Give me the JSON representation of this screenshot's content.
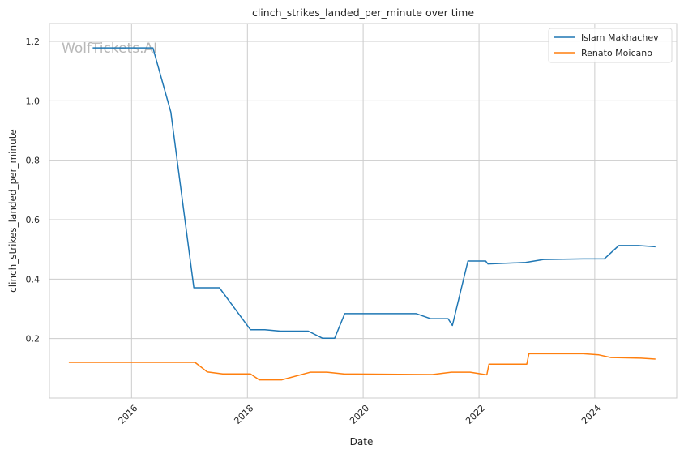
{
  "chart_data": {
    "type": "line",
    "title": "clinch_strikes_landed_per_minute over time",
    "xlabel": "Date",
    "ylabel": "clinch_strikes_landed_per_minute",
    "xlim": [
      "2014-08-01",
      "2025-06-01"
    ],
    "ylim": [
      0.0,
      1.26
    ],
    "x_ticks": [
      "2016",
      "2018",
      "2020",
      "2022",
      "2024"
    ],
    "x_tick_values": [
      "2016-01-01",
      "2018-01-01",
      "2020-01-01",
      "2022-01-01",
      "2024-01-01"
    ],
    "y_ticks": [
      0.2,
      0.4,
      0.6,
      0.8,
      1.0,
      1.2
    ],
    "y_tick_labels": [
      "0.2",
      "0.4",
      "0.6",
      "0.8",
      "1.0",
      "1.2"
    ],
    "grid": true,
    "legend_position": "top-right",
    "watermark": "WolfTickets.AI",
    "series": [
      {
        "name": "Islam Makhachev",
        "color": "#1f77b4",
        "points": [
          [
            "2015-05-01",
            1.178
          ],
          [
            "2016-05-15",
            1.178
          ],
          [
            "2016-09-05",
            0.962
          ],
          [
            "2017-01-28",
            0.371
          ],
          [
            "2017-07-08",
            0.371
          ],
          [
            "2018-01-20",
            0.23
          ],
          [
            "2018-04-21",
            0.23
          ],
          [
            "2018-07-28",
            0.225
          ],
          [
            "2019-01-20",
            0.225
          ],
          [
            "2019-04-20",
            0.201
          ],
          [
            "2019-07-05",
            0.201
          ],
          [
            "2019-09-07",
            0.284
          ],
          [
            "2020-12-01",
            0.284
          ],
          [
            "2021-03-01",
            0.267
          ],
          [
            "2021-06-20",
            0.267
          ],
          [
            "2021-07-17",
            0.244
          ],
          [
            "2021-10-23",
            0.461
          ],
          [
            "2022-02-12",
            0.461
          ],
          [
            "2022-02-26",
            0.451
          ],
          [
            "2022-10-22",
            0.456
          ],
          [
            "2023-02-12",
            0.466
          ],
          [
            "2023-10-21",
            0.468
          ],
          [
            "2024-03-01",
            0.468
          ],
          [
            "2024-06-01",
            0.513
          ],
          [
            "2024-10-01",
            0.513
          ],
          [
            "2025-01-18",
            0.509
          ]
        ]
      },
      {
        "name": "Renato Moicano",
        "color": "#ff7f0e",
        "points": [
          [
            "2014-12-01",
            0.12
          ],
          [
            "2017-02-04",
            0.12
          ],
          [
            "2017-04-22",
            0.088
          ],
          [
            "2017-07-29",
            0.081
          ],
          [
            "2018-01-20",
            0.081
          ],
          [
            "2018-03-17",
            0.061
          ],
          [
            "2018-08-04",
            0.061
          ],
          [
            "2019-02-02",
            0.087
          ],
          [
            "2019-05-18",
            0.087
          ],
          [
            "2019-08-31",
            0.081
          ],
          [
            "2021-03-13",
            0.079
          ],
          [
            "2021-07-10",
            0.087
          ],
          [
            "2021-11-06",
            0.087
          ],
          [
            "2022-02-19",
            0.078
          ],
          [
            "2022-03-05",
            0.114
          ],
          [
            "2022-10-29",
            0.114
          ],
          [
            "2022-11-12",
            0.149
          ],
          [
            "2023-10-21",
            0.149
          ],
          [
            "2024-01-27",
            0.145
          ],
          [
            "2024-04-13",
            0.136
          ],
          [
            "2024-10-19",
            0.134
          ],
          [
            "2025-01-18",
            0.131
          ]
        ]
      }
    ]
  }
}
